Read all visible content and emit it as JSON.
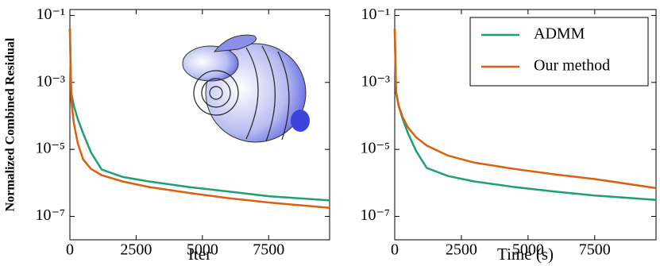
{
  "chart_data": [
    {
      "type": "line",
      "ylabel": "Normalized Combined Residual",
      "xlabel": "Iter",
      "x": [
        0,
        50,
        150,
        300,
        500,
        800,
        1200,
        2000,
        3000,
        4500,
        6000,
        7500,
        9800
      ],
      "series": [
        {
          "color": "#1f9e78",
          "values": [
            0.04,
            0.0005,
            0.0002,
            8e-05,
            3e-05,
            8e-06,
            2.5e-06,
            1.5e-06,
            1.1e-06,
            7.5e-07,
            5.5e-07,
            4e-07,
            3e-07
          ]
        },
        {
          "color": "#d9600f",
          "values": [
            0.04,
            0.0003,
            6e-05,
            1.5e-05,
            5e-06,
            2.6e-06,
            1.7e-06,
            1.1e-06,
            7.5e-07,
            5e-07,
            3.5e-07,
            2.6e-07,
            1.8e-07
          ]
        }
      ],
      "xlim": [
        0,
        9800
      ],
      "xticks": [
        0,
        2500,
        5000,
        7500
      ],
      "ylim": [
        2e-08,
        0.15
      ],
      "log_y": true,
      "yticks": [
        {
          "value": 0.1,
          "label": "10⁻¹"
        },
        {
          "value": 0.001,
          "label": "10⁻³"
        },
        {
          "value": 1e-05,
          "label": "10⁻⁵"
        },
        {
          "value": 1e-07,
          "label": "10⁻⁷"
        }
      ],
      "legend": false
    },
    {
      "type": "line",
      "xlabel": "Time (s)",
      "x": [
        0,
        50,
        150,
        300,
        500,
        800,
        1200,
        2000,
        3000,
        4500,
        6000,
        7500,
        9800
      ],
      "series": [
        {
          "name": "ADMM",
          "color": "#1f9e78",
          "values": [
            0.04,
            0.0005,
            0.0002,
            8e-05,
            3e-05,
            9e-06,
            2.8e-06,
            1.6e-06,
            1.1e-06,
            7.5e-07,
            5.5e-07,
            4.2e-07,
            3.1e-07
          ]
        },
        {
          "name": "Our method",
          "color": "#d9600f",
          "values": [
            0.04,
            0.0005,
            0.0002,
            9e-05,
            4.5e-05,
            2.3e-05,
            1.3e-05,
            6.5e-06,
            4e-06,
            2.6e-06,
            1.8e-06,
            1.3e-06,
            7e-07
          ]
        }
      ],
      "xlim": [
        0,
        9800
      ],
      "xticks": [
        0,
        2500,
        5000,
        7500
      ],
      "ylim": [
        2e-08,
        0.15
      ],
      "log_y": true,
      "yticks": [
        {
          "value": 0.1,
          "label": "10⁻¹"
        },
        {
          "value": 0.001,
          "label": "10⁻³"
        },
        {
          "value": 1e-05,
          "label": "10⁻⁵"
        },
        {
          "value": 1e-07,
          "label": "10⁻⁷"
        }
      ],
      "legend": "upper right"
    }
  ]
}
